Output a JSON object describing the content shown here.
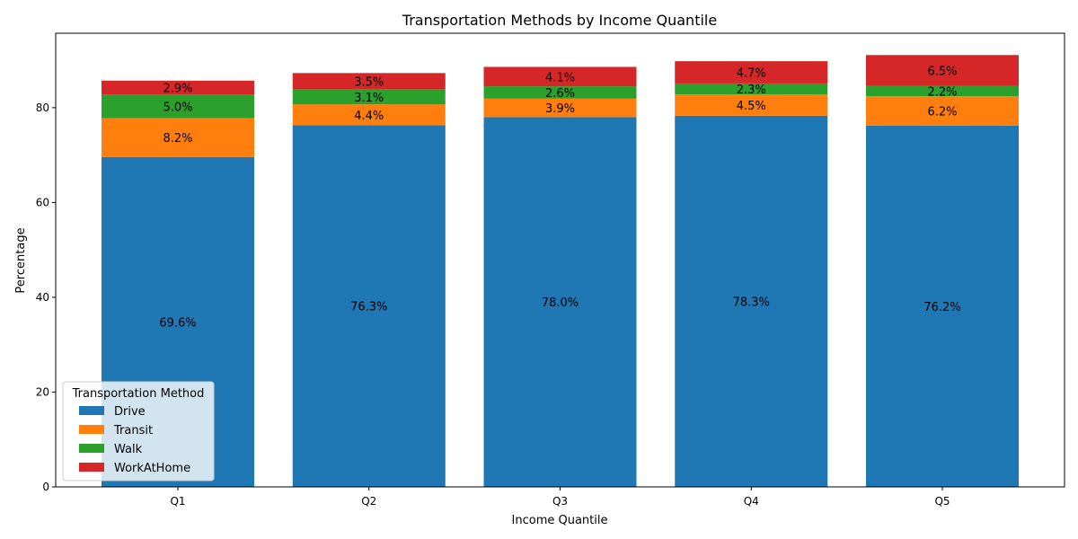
{
  "chart_data": {
    "type": "bar",
    "stacked": true,
    "title": "Transportation Methods by Income Quantile",
    "xlabel": "Income Quantile",
    "ylabel": "Percentage",
    "categories": [
      "Q1",
      "Q2",
      "Q3",
      "Q4",
      "Q5"
    ],
    "ylim": [
      0,
      95.7
    ],
    "yticks": [
      0,
      20,
      40,
      60,
      80
    ],
    "grid": false,
    "legend": {
      "title": "Transportation Method",
      "placement": "lower-left"
    },
    "series": [
      {
        "name": "Drive",
        "color": "#1f77b4",
        "values": [
          69.6,
          76.3,
          78.0,
          78.3,
          76.2
        ],
        "labels": [
          "69.6%",
          "76.3%",
          "78.0%",
          "78.3%",
          "76.2%"
        ]
      },
      {
        "name": "Transit",
        "color": "#ff7f0e",
        "values": [
          8.2,
          4.4,
          3.9,
          4.5,
          6.2
        ],
        "labels": [
          "8.2%",
          "4.4%",
          "3.9%",
          "4.5%",
          "6.2%"
        ]
      },
      {
        "name": "Walk",
        "color": "#2ca02c",
        "values": [
          5.0,
          3.1,
          2.6,
          2.3,
          2.2
        ],
        "labels": [
          "5.0%",
          "3.1%",
          "2.6%",
          "2.3%",
          "2.2%"
        ]
      },
      {
        "name": "WorkAtHome",
        "color": "#d62728",
        "values": [
          2.9,
          3.5,
          4.1,
          4.7,
          6.5
        ],
        "labels": [
          "2.9%",
          "3.5%",
          "4.1%",
          "4.7%",
          "6.5%"
        ]
      }
    ]
  }
}
